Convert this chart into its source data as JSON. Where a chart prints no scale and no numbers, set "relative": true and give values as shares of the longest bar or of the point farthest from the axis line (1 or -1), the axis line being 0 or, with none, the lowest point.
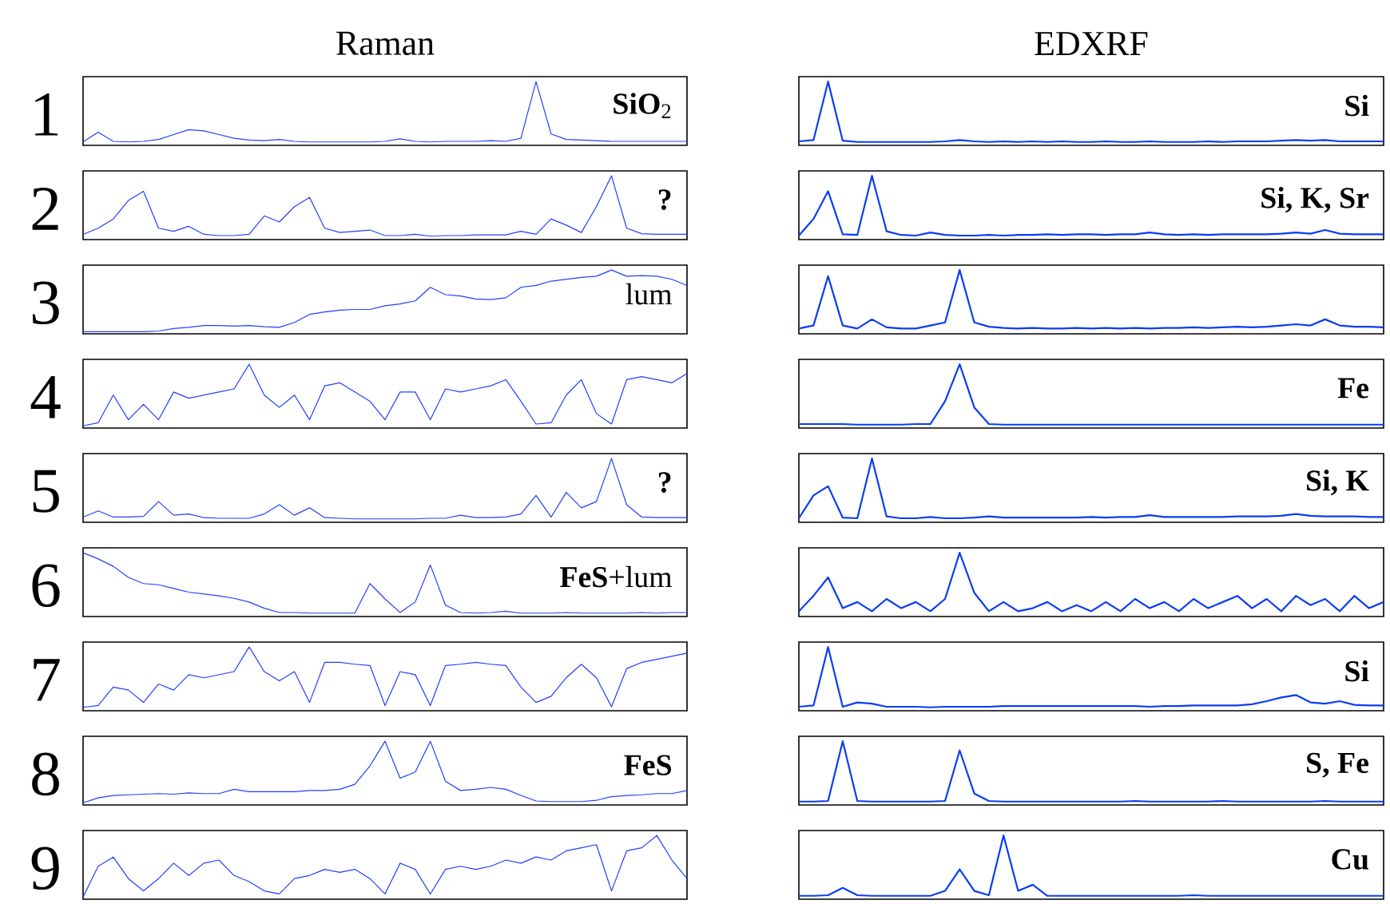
{
  "chart_data": [
    {
      "type": "line",
      "relative": true,
      "title": "Raman",
      "ylabel": "1",
      "annotations": [
        "**SiO**$_{2}$"
      ],
      "color": "#2040ff",
      "categories": [
        null,
        null,
        null,
        null,
        null,
        null,
        null,
        null,
        null,
        null,
        null,
        null,
        null,
        null,
        null,
        null,
        null,
        null,
        null,
        null,
        null,
        null,
        null,
        null,
        null,
        null,
        null,
        null,
        null,
        null,
        null,
        null,
        null,
        null,
        null,
        null,
        null,
        null,
        null,
        null,
        null
      ],
      "values": [
        0.02,
        0.18,
        0.03,
        0.02,
        0.03,
        0.06,
        0.14,
        0.22,
        0.2,
        0.14,
        0.08,
        0.05,
        0.04,
        0.06,
        0.03,
        0.02,
        0.02,
        0.02,
        0.02,
        0.02,
        0.03,
        0.07,
        0.03,
        0.02,
        0.03,
        0.03,
        0.03,
        0.04,
        0.03,
        0.08,
        1.0,
        0.15,
        0.06,
        0.05,
        0.04,
        0.03,
        0.03,
        0.03,
        0.03,
        0.03,
        0.03
      ]
    },
    {
      "type": "line",
      "relative": true,
      "title": "EDXRF",
      "annotations": [
        "**Si**"
      ],
      "color": "#0a3cf5",
      "categories": [
        null,
        null,
        null,
        null,
        null,
        null,
        null,
        null,
        null,
        null,
        null,
        null,
        null,
        null,
        null,
        null,
        null,
        null,
        null,
        null,
        null,
        null,
        null,
        null,
        null,
        null,
        null,
        null,
        null,
        null,
        null,
        null,
        null,
        null,
        null,
        null,
        null,
        null,
        null,
        null,
        null
      ],
      "values": [
        0.03,
        0.05,
        1.0,
        0.04,
        0.02,
        0.02,
        0.02,
        0.02,
        0.02,
        0.02,
        0.03,
        0.05,
        0.03,
        0.02,
        0.03,
        0.02,
        0.03,
        0.02,
        0.03,
        0.02,
        0.02,
        0.03,
        0.02,
        0.02,
        0.03,
        0.02,
        0.02,
        0.02,
        0.03,
        0.02,
        0.03,
        0.03,
        0.03,
        0.04,
        0.05,
        0.04,
        0.05,
        0.03,
        0.03,
        0.03,
        0.03
      ]
    },
    {
      "type": "line",
      "relative": true,
      "ylabel": "2",
      "annotations": [
        "**?**"
      ],
      "color": "#2040ff",
      "categories": [
        null,
        null,
        null,
        null,
        null,
        null,
        null,
        null,
        null,
        null,
        null,
        null,
        null,
        null,
        null,
        null,
        null,
        null,
        null,
        null,
        null,
        null,
        null,
        null,
        null,
        null,
        null,
        null,
        null,
        null,
        null,
        null,
        null,
        null,
        null,
        null,
        null,
        null,
        null,
        null,
        null
      ],
      "values": [
        0.05,
        0.15,
        0.3,
        0.6,
        0.75,
        0.15,
        0.1,
        0.18,
        0.05,
        0.03,
        0.03,
        0.05,
        0.35,
        0.25,
        0.5,
        0.65,
        0.15,
        0.08,
        0.1,
        0.12,
        0.03,
        0.03,
        0.05,
        0.02,
        0.03,
        0.03,
        0.04,
        0.04,
        0.04,
        0.1,
        0.05,
        0.3,
        0.2,
        0.08,
        0.5,
        1.0,
        0.15,
        0.06,
        0.05,
        0.05,
        0.05
      ]
    },
    {
      "type": "line",
      "relative": true,
      "annotations": [
        "**Si, K, Sr**"
      ],
      "color": "#0a3cf5",
      "categories": [
        null,
        null,
        null,
        null,
        null,
        null,
        null,
        null,
        null,
        null,
        null,
        null,
        null,
        null,
        null,
        null,
        null,
        null,
        null,
        null,
        null,
        null,
        null,
        null,
        null,
        null,
        null,
        null,
        null,
        null,
        null,
        null,
        null,
        null,
        null,
        null,
        null,
        null,
        null,
        null,
        null
      ],
      "values": [
        0.03,
        0.3,
        0.75,
        0.05,
        0.04,
        1.0,
        0.1,
        0.04,
        0.03,
        0.08,
        0.04,
        0.03,
        0.03,
        0.04,
        0.03,
        0.04,
        0.04,
        0.05,
        0.04,
        0.05,
        0.05,
        0.04,
        0.05,
        0.05,
        0.08,
        0.05,
        0.04,
        0.05,
        0.04,
        0.05,
        0.05,
        0.05,
        0.05,
        0.06,
        0.08,
        0.06,
        0.12,
        0.06,
        0.05,
        0.05,
        0.05
      ]
    },
    {
      "type": "line",
      "relative": true,
      "ylabel": "3",
      "annotations": [
        "lum"
      ],
      "color": "#2040ff",
      "categories": [
        null,
        null,
        null,
        null,
        null,
        null,
        null,
        null,
        null,
        null,
        null,
        null,
        null,
        null,
        null,
        null,
        null,
        null,
        null,
        null,
        null,
        null,
        null,
        null,
        null,
        null,
        null,
        null,
        null,
        null,
        null,
        null,
        null,
        null,
        null,
        null,
        null,
        null,
        null,
        null,
        null
      ],
      "values": [
        0,
        0,
        0,
        0,
        0,
        0.01,
        0.05,
        0.07,
        0.1,
        0.1,
        0.09,
        0.1,
        0.08,
        0.07,
        0.15,
        0.28,
        0.32,
        0.35,
        0.36,
        0.36,
        0.42,
        0.45,
        0.5,
        0.72,
        0.6,
        0.58,
        0.53,
        0.52,
        0.55,
        0.72,
        0.75,
        0.82,
        0.85,
        0.88,
        0.9,
        1.0,
        0.9,
        0.91,
        0.9,
        0.85,
        0.75
      ]
    },
    {
      "type": "line",
      "relative": true,
      "color": "#0a3cf5",
      "categories": [
        null,
        null,
        null,
        null,
        null,
        null,
        null,
        null,
        null,
        null,
        null,
        null,
        null,
        null,
        null,
        null,
        null,
        null,
        null,
        null,
        null,
        null,
        null,
        null,
        null,
        null,
        null,
        null,
        null,
        null,
        null,
        null,
        null,
        null,
        null,
        null,
        null,
        null,
        null,
        null,
        null
      ],
      "values": [
        0.05,
        0.1,
        0.9,
        0.1,
        0.05,
        0.2,
        0.07,
        0.05,
        0.05,
        0.1,
        0.15,
        1.0,
        0.15,
        0.08,
        0.06,
        0.05,
        0.06,
        0.05,
        0.05,
        0.06,
        0.05,
        0.06,
        0.05,
        0.06,
        0.05,
        0.06,
        0.06,
        0.07,
        0.06,
        0.07,
        0.08,
        0.07,
        0.08,
        0.1,
        0.12,
        0.1,
        0.2,
        0.1,
        0.08,
        0.08,
        0.07
      ]
    },
    {
      "type": "line",
      "relative": true,
      "ylabel": "4",
      "color": "#2040ff",
      "categories": [
        null,
        null,
        null,
        null,
        null,
        null,
        null,
        null,
        null,
        null,
        null,
        null,
        null,
        null,
        null,
        null,
        null,
        null,
        null,
        null,
        null,
        null,
        null,
        null,
        null,
        null,
        null,
        null,
        null,
        null,
        null,
        null,
        null,
        null,
        null,
        null,
        null,
        null,
        null,
        null,
        null
      ],
      "values": [
        0,
        0.05,
        0.5,
        0.1,
        0.35,
        0.1,
        0.55,
        0.45,
        0.5,
        0.55,
        0.6,
        1.0,
        0.5,
        0.3,
        0.5,
        0.1,
        0.65,
        0.7,
        0.55,
        0.4,
        0.1,
        0.55,
        0.55,
        0.1,
        0.6,
        0.55,
        0.6,
        0.65,
        0.75,
        0.4,
        0.03,
        0.05,
        0.5,
        0.75,
        0.2,
        0.03,
        0.75,
        0.8,
        0.75,
        0.7,
        0.85
      ]
    },
    {
      "type": "line",
      "relative": true,
      "annotations": [
        "**Fe**"
      ],
      "color": "#0a3cf5",
      "categories": [
        null,
        null,
        null,
        null,
        null,
        null,
        null,
        null,
        null,
        null,
        null,
        null,
        null,
        null,
        null,
        null,
        null,
        null,
        null,
        null,
        null,
        null,
        null,
        null,
        null,
        null,
        null,
        null,
        null,
        null,
        null,
        null,
        null,
        null,
        null,
        null,
        null,
        null,
        null,
        null,
        null
      ],
      "values": [
        0.03,
        0.03,
        0.03,
        0.03,
        0.02,
        0.02,
        0.02,
        0.02,
        0.03,
        0.03,
        0.4,
        1.0,
        0.3,
        0.03,
        0.02,
        0.02,
        0.02,
        0.02,
        0.02,
        0.02,
        0.02,
        0.02,
        0.02,
        0.02,
        0.02,
        0.02,
        0.02,
        0.02,
        0.02,
        0.02,
        0.02,
        0.02,
        0.02,
        0.02,
        0.02,
        0.02,
        0.02,
        0.02,
        0.02,
        0.02,
        0.02
      ]
    },
    {
      "type": "line",
      "relative": true,
      "ylabel": "5",
      "annotations": [
        "**?**"
      ],
      "color": "#2040ff",
      "categories": [
        null,
        null,
        null,
        null,
        null,
        null,
        null,
        null,
        null,
        null,
        null,
        null,
        null,
        null,
        null,
        null,
        null,
        null,
        null,
        null,
        null,
        null,
        null,
        null,
        null,
        null,
        null,
        null,
        null,
        null,
        null,
        null,
        null,
        null,
        null,
        null,
        null,
        null,
        null,
        null,
        null
      ],
      "values": [
        0.05,
        0.15,
        0.05,
        0.05,
        0.06,
        0.3,
        0.08,
        0.1,
        0.04,
        0.03,
        0.03,
        0.03,
        0.1,
        0.25,
        0.08,
        0.2,
        0.04,
        0.03,
        0.02,
        0.02,
        0.02,
        0.02,
        0.02,
        0.03,
        0.03,
        0.08,
        0.04,
        0.04,
        0.05,
        0.1,
        0.4,
        0.05,
        0.45,
        0.2,
        0.3,
        1.0,
        0.25,
        0.05,
        0.04,
        0.04,
        0.04
      ]
    },
    {
      "type": "line",
      "relative": true,
      "annotations": [
        "**Si, K**"
      ],
      "color": "#0a3cf5",
      "categories": [
        null,
        null,
        null,
        null,
        null,
        null,
        null,
        null,
        null,
        null,
        null,
        null,
        null,
        null,
        null,
        null,
        null,
        null,
        null,
        null,
        null,
        null,
        null,
        null,
        null,
        null,
        null,
        null,
        null,
        null,
        null,
        null,
        null,
        null,
        null,
        null,
        null,
        null,
        null,
        null,
        null
      ],
      "values": [
        0.03,
        0.4,
        0.55,
        0.04,
        0.03,
        1.0,
        0.06,
        0.03,
        0.03,
        0.05,
        0.03,
        0.03,
        0.04,
        0.06,
        0.04,
        0.04,
        0.04,
        0.04,
        0.04,
        0.04,
        0.05,
        0.04,
        0.05,
        0.05,
        0.08,
        0.05,
        0.05,
        0.05,
        0.05,
        0.05,
        0.06,
        0.06,
        0.06,
        0.07,
        0.1,
        0.07,
        0.06,
        0.06,
        0.06,
        0.05,
        0.05
      ]
    },
    {
      "type": "line",
      "relative": true,
      "ylabel": "6",
      "annotations": [
        "**FeS**+lum"
      ],
      "color": "#2040ff",
      "categories": [
        null,
        null,
        null,
        null,
        null,
        null,
        null,
        null,
        null,
        null,
        null,
        null,
        null,
        null,
        null,
        null,
        null,
        null,
        null,
        null,
        null,
        null,
        null,
        null,
        null,
        null,
        null,
        null,
        null,
        null,
        null,
        null,
        null,
        null,
        null,
        null,
        null,
        null,
        null,
        null,
        null
      ],
      "values": [
        1.0,
        0.9,
        0.78,
        0.6,
        0.5,
        0.48,
        0.42,
        0.36,
        0.33,
        0.3,
        0.26,
        0.2,
        0.1,
        0.03,
        0.03,
        0.02,
        0.02,
        0.02,
        0.02,
        0.5,
        0.25,
        0.03,
        0.2,
        0.8,
        0.15,
        0.03,
        0.02,
        0.03,
        0.05,
        0.02,
        0.02,
        0.02,
        0.03,
        0.02,
        0.02,
        0.02,
        0.02,
        0.03,
        0.02,
        0.03,
        0.03
      ]
    },
    {
      "type": "line",
      "relative": true,
      "color": "#0a3cf5",
      "categories": [
        null,
        null,
        null,
        null,
        null,
        null,
        null,
        null,
        null,
        null,
        null,
        null,
        null,
        null,
        null,
        null,
        null,
        null,
        null,
        null,
        null,
        null,
        null,
        null,
        null,
        null,
        null,
        null,
        null,
        null,
        null,
        null,
        null,
        null,
        null,
        null,
        null,
        null,
        null,
        null,
        null
      ],
      "values": [
        0.05,
        0.3,
        0.6,
        0.1,
        0.2,
        0.05,
        0.25,
        0.1,
        0.2,
        0.05,
        0.25,
        1.0,
        0.35,
        0.05,
        0.2,
        0.05,
        0.1,
        0.2,
        0.05,
        0.15,
        0.05,
        0.2,
        0.05,
        0.25,
        0.1,
        0.2,
        0.05,
        0.25,
        0.1,
        0.2,
        0.3,
        0.1,
        0.25,
        0.05,
        0.3,
        0.15,
        0.25,
        0.05,
        0.3,
        0.1,
        0.2
      ]
    },
    {
      "type": "line",
      "relative": true,
      "ylabel": "7",
      "color": "#2040ff",
      "categories": [
        null,
        null,
        null,
        null,
        null,
        null,
        null,
        null,
        null,
        null,
        null,
        null,
        null,
        null,
        null,
        null,
        null,
        null,
        null,
        null,
        null,
        null,
        null,
        null,
        null,
        null,
        null,
        null,
        null,
        null,
        null,
        null,
        null,
        null,
        null,
        null,
        null,
        null,
        null,
        null,
        null
      ],
      "values": [
        0.02,
        0.05,
        0.35,
        0.3,
        0.1,
        0.4,
        0.3,
        0.55,
        0.5,
        0.55,
        0.6,
        1.0,
        0.6,
        0.45,
        0.6,
        0.1,
        0.75,
        0.75,
        0.72,
        0.7,
        0.05,
        0.6,
        0.55,
        0.05,
        0.7,
        0.72,
        0.75,
        0.72,
        0.7,
        0.35,
        0.1,
        0.2,
        0.5,
        0.72,
        0.5,
        0.03,
        0.65,
        0.75,
        0.8,
        0.85,
        0.9
      ]
    },
    {
      "type": "line",
      "relative": true,
      "annotations": [
        "**Si**"
      ],
      "color": "#0a3cf5",
      "categories": [
        null,
        null,
        null,
        null,
        null,
        null,
        null,
        null,
        null,
        null,
        null,
        null,
        null,
        null,
        null,
        null,
        null,
        null,
        null,
        null,
        null,
        null,
        null,
        null,
        null,
        null,
        null,
        null,
        null,
        null,
        null,
        null,
        null,
        null,
        null,
        null,
        null,
        null,
        null,
        null,
        null
      ],
      "values": [
        0.03,
        0.05,
        1.0,
        0.03,
        0.1,
        0.08,
        0.03,
        0.03,
        0.03,
        0.02,
        0.03,
        0.03,
        0.03,
        0.03,
        0.04,
        0.04,
        0.04,
        0.04,
        0.04,
        0.04,
        0.04,
        0.04,
        0.04,
        0.04,
        0.03,
        0.04,
        0.04,
        0.05,
        0.05,
        0.05,
        0.05,
        0.07,
        0.12,
        0.18,
        0.22,
        0.1,
        0.08,
        0.12,
        0.06,
        0.05,
        0.05
      ]
    },
    {
      "type": "line",
      "relative": true,
      "ylabel": "8",
      "annotations": [
        "**FeS**"
      ],
      "color": "#2040ff",
      "categories": [
        null,
        null,
        null,
        null,
        null,
        null,
        null,
        null,
        null,
        null,
        null,
        null,
        null,
        null,
        null,
        null,
        null,
        null,
        null,
        null,
        null,
        null,
        null,
        null,
        null,
        null,
        null,
        null,
        null,
        null,
        null,
        null,
        null,
        null,
        null,
        null,
        null,
        null,
        null,
        null,
        null
      ],
      "values": [
        0,
        0.08,
        0.12,
        0.13,
        0.14,
        0.15,
        0.14,
        0.16,
        0.15,
        0.15,
        0.22,
        0.18,
        0.18,
        0.18,
        0.18,
        0.2,
        0.2,
        0.22,
        0.3,
        0.6,
        1.0,
        0.4,
        0.5,
        1.0,
        0.35,
        0.2,
        0.22,
        0.25,
        0.22,
        0.12,
        0.03,
        0.02,
        0.02,
        0.02,
        0.04,
        0.1,
        0.12,
        0.13,
        0.15,
        0.15,
        0.2
      ]
    },
    {
      "type": "line",
      "relative": true,
      "annotations": [
        "**S, Fe**"
      ],
      "color": "#0a3cf5",
      "categories": [
        null,
        null,
        null,
        null,
        null,
        null,
        null,
        null,
        null,
        null,
        null,
        null,
        null,
        null,
        null,
        null,
        null,
        null,
        null,
        null,
        null,
        null,
        null,
        null,
        null,
        null,
        null,
        null,
        null,
        null,
        null,
        null,
        null,
        null,
        null,
        null,
        null,
        null,
        null,
        null,
        null
      ],
      "values": [
        0.02,
        0.02,
        0.03,
        1.0,
        0.03,
        0.02,
        0.02,
        0.02,
        0.02,
        0.02,
        0.03,
        0.85,
        0.15,
        0.03,
        0.02,
        0.02,
        0.02,
        0.02,
        0.02,
        0.02,
        0.02,
        0.02,
        0.02,
        0.03,
        0.02,
        0.02,
        0.02,
        0.02,
        0.02,
        0.03,
        0.02,
        0.02,
        0.02,
        0.02,
        0.02,
        0.02,
        0.03,
        0.02,
        0.02,
        0.02,
        0.02
      ]
    },
    {
      "type": "line",
      "relative": true,
      "ylabel": "9",
      "color": "#2040ff",
      "categories": [
        null,
        null,
        null,
        null,
        null,
        null,
        null,
        null,
        null,
        null,
        null,
        null,
        null,
        null,
        null,
        null,
        null,
        null,
        null,
        null,
        null,
        null,
        null,
        null,
        null,
        null,
        null,
        null,
        null,
        null,
        null,
        null,
        null,
        null,
        null,
        null,
        null,
        null,
        null,
        null,
        null
      ],
      "values": [
        0,
        0.5,
        0.65,
        0.3,
        0.1,
        0.3,
        0.55,
        0.35,
        0.55,
        0.6,
        0.35,
        0.25,
        0.1,
        0.05,
        0.3,
        0.35,
        0.45,
        0.4,
        0.45,
        0.3,
        0.05,
        0.55,
        0.45,
        0.05,
        0.45,
        0.5,
        0.45,
        0.5,
        0.6,
        0.55,
        0.65,
        0.6,
        0.75,
        0.8,
        0.85,
        0.1,
        0.75,
        0.8,
        1.0,
        0.6,
        0.3
      ]
    },
    {
      "type": "line",
      "relative": true,
      "annotations": [
        "**Cu**"
      ],
      "color": "#0a3cf5",
      "categories": [
        null,
        null,
        null,
        null,
        null,
        null,
        null,
        null,
        null,
        null,
        null,
        null,
        null,
        null,
        null,
        null,
        null,
        null,
        null,
        null,
        null,
        null,
        null,
        null,
        null,
        null,
        null,
        null,
        null,
        null,
        null,
        null,
        null,
        null,
        null,
        null,
        null,
        null,
        null,
        null,
        null
      ],
      "values": [
        0.02,
        0.02,
        0.03,
        0.15,
        0.03,
        0.02,
        0.02,
        0.02,
        0.02,
        0.02,
        0.1,
        0.45,
        0.1,
        0.03,
        1.0,
        0.1,
        0.2,
        0.02,
        0.02,
        0.02,
        0.02,
        0.02,
        0.02,
        0.02,
        0.02,
        0.02,
        0.02,
        0.03,
        0.02,
        0.02,
        0.02,
        0.02,
        0.02,
        0.02,
        0.02,
        0.02,
        0.02,
        0.02,
        0.02,
        0.02,
        0.02
      ]
    }
  ]
}
